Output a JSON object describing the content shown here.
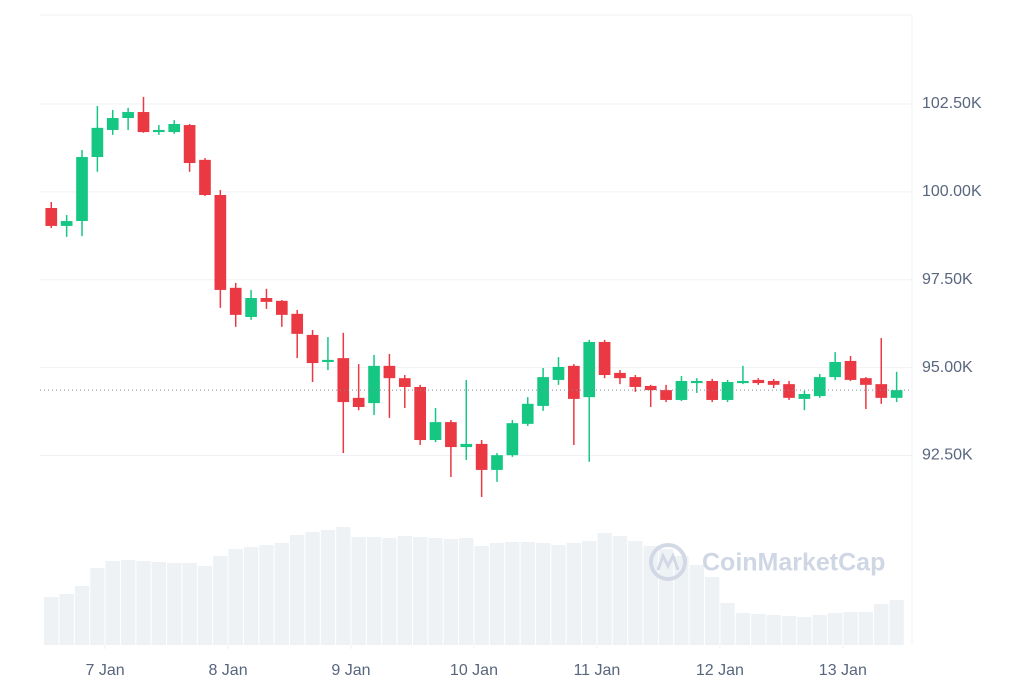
{
  "chart_data": {
    "type": "candlestick",
    "x": [
      -10.5,
      -7.5,
      -4.5,
      -1.5,
      1.5,
      4.5,
      7.5,
      10.5,
      13.5,
      16.5,
      19.5,
      22.5,
      25.5,
      28.5,
      31.5,
      34.5,
      37.5,
      40.5,
      43.5,
      46.5,
      49.5,
      52.5,
      55.5,
      58.5,
      61.5,
      64.5,
      67.5,
      70.5,
      73.5,
      76.5,
      79.5,
      82.5,
      85.5,
      88.5,
      91.5,
      94.5,
      97.5,
      100.5,
      103.5,
      106.5,
      109.5,
      112.5,
      115.5,
      118.5,
      121.5,
      124.5,
      127.5,
      130.5,
      133.5,
      136.5,
      139.5,
      142.5,
      145.5,
      148.5,
      151.5,
      154.5
    ],
    "open": [
      99540,
      99030,
      99170,
      100990,
      101760,
      102100,
      102270,
      101700,
      101700,
      101900,
      100910,
      99910,
      97270,
      96440,
      96980,
      96900,
      96530,
      95930,
      95160,
      95270,
      94140,
      93990,
      95050,
      94700,
      94450,
      92940,
      93450,
      92740,
      92830,
      92090,
      92510,
      93400,
      93910,
      94650,
      95050,
      94160,
      95730,
      94850,
      94730,
      94480,
      94360,
      94080,
      94560,
      94620,
      94080,
      94560,
      94650,
      94620,
      94530,
      94110,
      94190,
      94730,
      95190,
      94700,
      94530,
      94140
    ],
    "high": [
      99710,
      99340,
      101190,
      102440,
      102330,
      102390,
      102700,
      101900,
      102040,
      101930,
      100960,
      100050,
      97410,
      97210,
      97240,
      96920,
      96640,
      96070,
      95870,
      95990,
      95100,
      95360,
      95390,
      94790,
      94510,
      93850,
      93510,
      94650,
      92940,
      92570,
      93510,
      94160,
      94990,
      95300,
      95100,
      95790,
      95790,
      94930,
      94790,
      94510,
      94510,
      94760,
      94700,
      94680,
      94650,
      95050,
      94700,
      94680,
      94620,
      94340,
      94820,
      95440,
      95330,
      94730,
      95840,
      94880
    ],
    "low": [
      98970,
      98720,
      98740,
      100570,
      101620,
      101760,
      101680,
      101620,
      101650,
      100570,
      99880,
      96700,
      96160,
      96360,
      96670,
      96160,
      95270,
      94590,
      94930,
      92570,
      93790,
      93650,
      93570,
      93850,
      92800,
      92880,
      91890,
      92370,
      91320,
      91750,
      92460,
      93340,
      93770,
      94510,
      92800,
      92320,
      94700,
      94530,
      94310,
      93880,
      94020,
      94050,
      94280,
      94020,
      94020,
      94530,
      94510,
      94420,
      94080,
      93790,
      94140,
      94650,
      94620,
      93820,
      93970,
      94020
    ],
    "close": [
      99030,
      99170,
      100990,
      101820,
      102100,
      102270,
      101700,
      101760,
      101930,
      100820,
      99910,
      97210,
      96500,
      96980,
      96870,
      96500,
      95960,
      95130,
      95220,
      94020,
      93880,
      95050,
      94700,
      94450,
      92940,
      93450,
      92740,
      92830,
      92090,
      92510,
      93420,
      93970,
      94730,
      95020,
      94110,
      95730,
      94790,
      94700,
      94450,
      94360,
      94080,
      94620,
      94620,
      94080,
      94590,
      94620,
      94560,
      94510,
      94140,
      94250,
      94730,
      95160,
      94650,
      94510,
      94140,
      94360
    ],
    "volume": [
      48,
      51,
      59,
      77,
      84,
      85,
      84,
      83,
      82,
      82,
      79,
      89,
      96,
      98,
      100,
      102,
      110,
      113,
      115,
      118,
      108,
      108,
      107,
      109,
      108,
      107,
      106,
      107,
      99,
      102,
      103,
      103,
      102,
      100,
      102,
      104,
      112,
      109,
      104,
      99,
      96,
      89,
      80,
      68,
      42,
      32,
      31,
      30,
      29,
      28,
      30,
      32,
      33,
      33,
      41,
      45
    ],
    "volume_lim": [
      0,
      180
    ],
    "last_price": 94360,
    "xlim": [
      -12.7,
      157.5
    ],
    "xticks": [
      {
        "value": 0,
        "label": "7 Jan"
      },
      {
        "value": 24,
        "label": "8 Jan"
      },
      {
        "value": 48,
        "label": "9 Jan"
      },
      {
        "value": 72,
        "label": "10 Jan"
      },
      {
        "value": 96,
        "label": "11 Jan"
      },
      {
        "value": 120,
        "label": "12 Jan"
      },
      {
        "value": 144,
        "label": "13 Jan"
      }
    ],
    "ylim": [
      87110,
      105030
    ],
    "yticks": [
      {
        "value": 92500,
        "label": "92.50K"
      },
      {
        "value": 95000,
        "label": "95.00K"
      },
      {
        "value": 97500,
        "label": "97.50K"
      },
      {
        "value": 100000,
        "label": "100.00K"
      },
      {
        "value": 102500,
        "label": "102.50K"
      }
    ],
    "grid": true,
    "up_color": "#16c784",
    "down_color": "#ea3943",
    "volume_color": "#eff2f5",
    "watermark": "CoinMarketCap"
  }
}
